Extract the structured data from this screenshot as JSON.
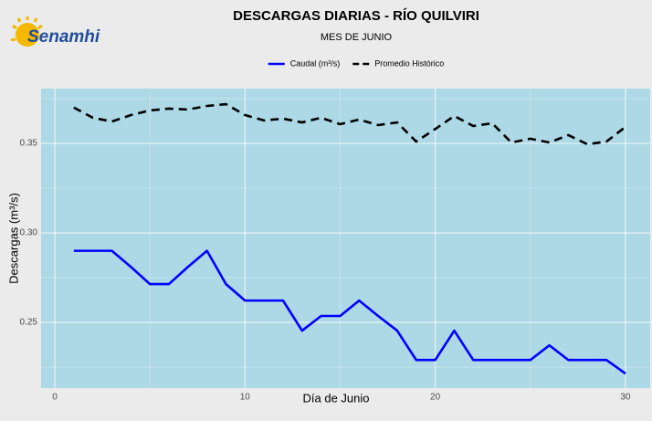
{
  "logo_text": "Senamhi",
  "chart_data": {
    "type": "line",
    "title": "DESCARGAS DIARIAS - RÍO QUILVIRI",
    "subtitle": "MES DE JUNIO",
    "x_label": "Día de Junio",
    "y_label": "Descargas (m³/s)",
    "x": [
      1,
      2,
      3,
      4,
      5,
      6,
      7,
      8,
      9,
      10,
      11,
      12,
      13,
      14,
      15,
      16,
      17,
      18,
      19,
      20,
      21,
      22,
      23,
      24,
      25,
      26,
      27,
      28,
      29,
      30
    ],
    "series": [
      {
        "name": "Caudal (m³/s)",
        "color": "#0000ff",
        "dashed": false,
        "values": [
          0.29,
          0.29,
          0.29,
          0.281,
          0.2714,
          0.2714,
          0.281,
          0.29,
          0.2714,
          0.2622,
          0.2622,
          0.2622,
          0.2454,
          0.2536,
          0.2536,
          0.2622,
          0.2536,
          0.2454,
          0.229,
          0.229,
          0.2454,
          0.229,
          0.229,
          0.229,
          0.229,
          0.2372,
          0.229,
          0.229,
          0.229,
          0.2214
        ]
      },
      {
        "name": "Promedio Histórico",
        "color": "#000000",
        "dashed": true,
        "values": [
          0.37,
          0.3643,
          0.3622,
          0.3658,
          0.3684,
          0.3694,
          0.3689,
          0.3709,
          0.3719,
          0.3658,
          0.3628,
          0.3638,
          0.3617,
          0.3643,
          0.3607,
          0.3633,
          0.3602,
          0.3617,
          0.351,
          0.358,
          0.3653,
          0.3597,
          0.3612,
          0.3505,
          0.3526,
          0.3505,
          0.3546,
          0.3495,
          0.351,
          0.3592
        ]
      }
    ],
    "xlim": [
      -0.72,
      31.3
    ],
    "ylim": [
      0.2133,
      0.3806
    ],
    "xticks": [
      0,
      10,
      20,
      30
    ],
    "yticks": [
      0.25,
      {
        "value": 0.3,
        "label": "0.30"
      },
      0.35
    ],
    "grid": true,
    "legend": "top"
  }
}
